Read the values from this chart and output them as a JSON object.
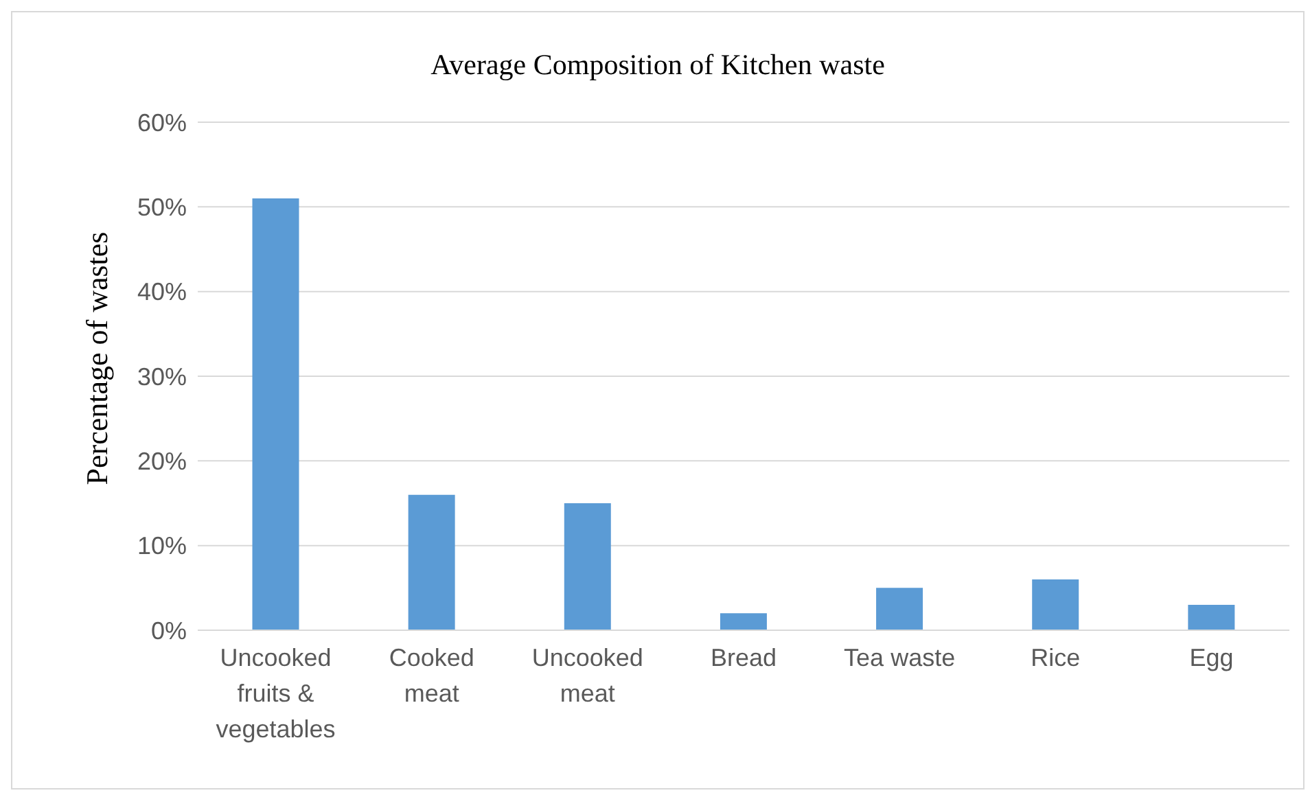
{
  "chart_data": {
    "type": "bar",
    "title": "Average Composition of Kitchen waste",
    "ylabel": "Percentage of wastes",
    "categories": [
      "Uncooked fruits & vegetables",
      "Cooked meat",
      "Uncooked meat",
      "Bread",
      "Tea waste",
      "Rice",
      "Egg"
    ],
    "values": [
      51,
      16,
      15,
      2,
      5,
      6,
      3
    ],
    "color": "#5b9bd5",
    "ylim": [
      0,
      60
    ],
    "yticks": [
      {
        "value": 0,
        "label": "0%"
      },
      {
        "value": 10,
        "label": "10%"
      },
      {
        "value": 20,
        "label": "20%"
      },
      {
        "value": 30,
        "label": "30%"
      },
      {
        "value": 40,
        "label": "40%"
      },
      {
        "value": 50,
        "label": "50%"
      },
      {
        "value": 60,
        "label": "60%"
      }
    ],
    "grid": "y"
  }
}
